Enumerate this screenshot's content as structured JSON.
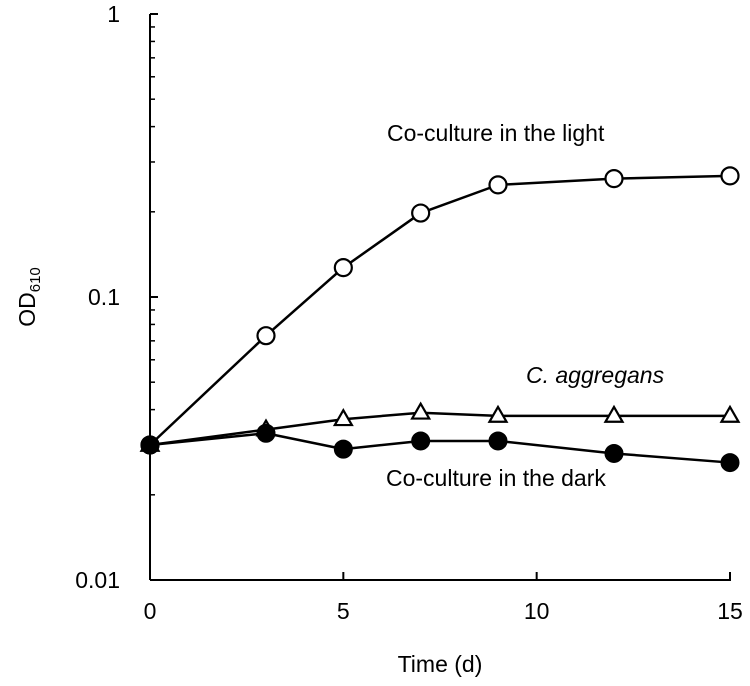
{
  "chart_data": {
    "type": "line",
    "title": "",
    "xlabel": "Time (d)",
    "ylabel_main": "OD",
    "ylabel_sub": "610",
    "yscale": "log",
    "xlim": [
      0,
      15
    ],
    "ylim": [
      0.01,
      1
    ],
    "xticks": [
      0,
      5,
      10,
      15
    ],
    "xtick_labels": [
      "0",
      "5",
      "10",
      "15"
    ],
    "yticks": [
      0.01,
      0.1,
      1
    ],
    "ytick_labels": [
      "0.01",
      "0.1",
      "1"
    ],
    "grid": false,
    "legend": "none",
    "series": [
      {
        "name": "Co-culture in the light",
        "marker": "open-circle",
        "x": [
          0,
          3,
          5,
          7,
          9,
          12,
          15
        ],
        "y": [
          0.03,
          0.073,
          0.127,
          0.198,
          0.249,
          0.262,
          0.268
        ]
      },
      {
        "name": "C. aggregans",
        "marker": "open-triangle",
        "x": [
          0,
          3,
          5,
          7,
          9,
          12,
          15
        ],
        "y": [
          0.03,
          0.034,
          0.037,
          0.039,
          0.038,
          0.038,
          0.038
        ]
      },
      {
        "name": "Co-culture in the dark",
        "marker": "filled-circle",
        "x": [
          0,
          3,
          5,
          7,
          9,
          12,
          15
        ],
        "y": [
          0.03,
          0.033,
          0.029,
          0.031,
          0.031,
          0.028,
          0.026
        ]
      }
    ]
  }
}
